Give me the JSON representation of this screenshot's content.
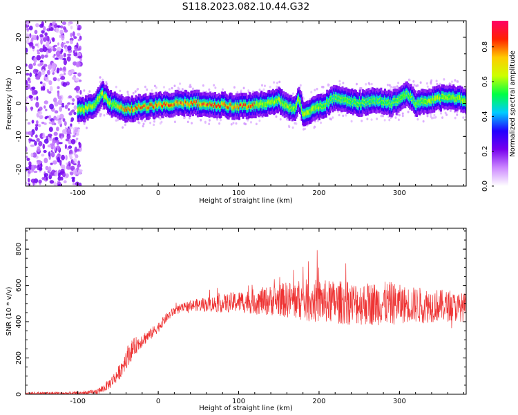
{
  "figure_title": "S118.2023.082.10.44.G32",
  "chart_data": [
    {
      "type": "heatmap",
      "title": "S118.2023.082.10.44.G32",
      "xlabel": "Height of straight line (km)",
      "ylabel": "Frequency (Hz)",
      "xlim": [
        -165,
        383
      ],
      "ylim": [
        -25,
        25
      ],
      "xticks": [
        -100,
        0,
        100,
        200,
        300
      ],
      "yticks": [
        -20,
        -10,
        0,
        10,
        20
      ],
      "ridge": {
        "x": [
          -100,
          -90,
          -80,
          -70,
          -60,
          -50,
          -40,
          -20,
          0,
          20,
          50,
          80,
          100,
          120,
          140,
          150,
          160,
          170,
          175,
          180,
          190,
          200,
          210,
          220,
          230,
          250,
          270,
          290,
          300,
          310,
          320,
          340,
          360,
          380
        ],
        "y": [
          -2,
          -1.5,
          -1,
          3,
          0,
          -1,
          -2,
          -1,
          -0.5,
          0,
          0,
          -0.5,
          -1,
          -0.5,
          0,
          1,
          -1,
          -2,
          2,
          -3,
          -2,
          -1,
          0,
          2,
          1,
          0,
          1,
          0,
          1,
          3,
          0,
          1,
          2,
          1
        ]
      },
      "noise_region_xlim": [
        -165,
        -100
      ],
      "colorbar": {
        "label": "Normalized spectral amplitude",
        "ticks": [
          "0.0",
          "0.2",
          "0.4",
          "0.6",
          "0.8"
        ],
        "range": [
          0,
          0.95
        ],
        "colors": [
          "#ffffff",
          "#cc88ff",
          "#7700ee",
          "#2200ff",
          "#00ccff",
          "#00ff44",
          "#ccff00",
          "#ffcc00",
          "#ff2200",
          "#ff0066"
        ]
      }
    },
    {
      "type": "line",
      "xlabel": "Height of straight line (km)",
      "ylabel": "SNR (10 * v/v)",
      "xlim": [
        -165,
        383
      ],
      "ylim": [
        0,
        915
      ],
      "xticks": [
        -100,
        0,
        100,
        200,
        300
      ],
      "yticks": [
        0,
        200,
        400,
        600,
        800
      ],
      "color": "#ee3333",
      "envelope": {
        "x": [
          -165,
          -100,
          -80,
          -70,
          -60,
          -50,
          -45,
          -40,
          -35,
          -30,
          -20,
          -10,
          0,
          10,
          20,
          30,
          40,
          60,
          80,
          100,
          120,
          150,
          170,
          190,
          210,
          230,
          250,
          270,
          290,
          300,
          310,
          330,
          350,
          370,
          383
        ],
        "mid": [
          5,
          5,
          10,
          25,
          60,
          110,
          150,
          200,
          230,
          260,
          300,
          330,
          370,
          420,
          460,
          475,
          490,
          495,
          500,
          510,
          510,
          520,
          520,
          515,
          510,
          505,
          500,
          500,
          500,
          495,
          495,
          490,
          490,
          480,
          480
        ],
        "spread": [
          8,
          10,
          15,
          20,
          30,
          40,
          50,
          60,
          60,
          50,
          40,
          30,
          30,
          25,
          25,
          25,
          30,
          40,
          50,
          60,
          70,
          90,
          110,
          120,
          120,
          120,
          120,
          120,
          120,
          110,
          100,
          100,
          90,
          80,
          80
        ]
      }
    }
  ]
}
